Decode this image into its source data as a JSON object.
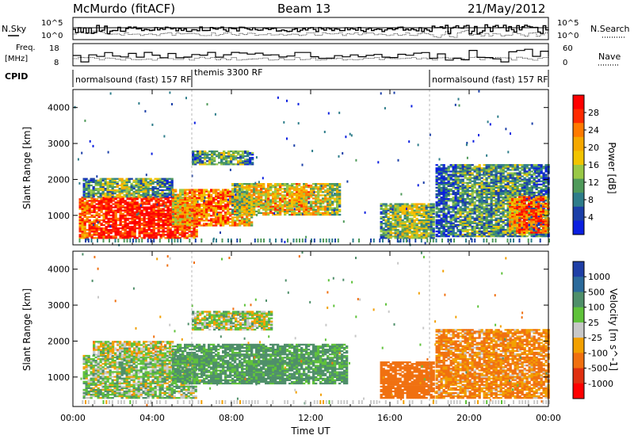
{
  "header": {
    "station": "McMurdo (fitACF)",
    "beam": "Beam 13",
    "date": "21/May/2012"
  },
  "left_labels": {
    "nsky": "N.Sky",
    "freq_line1": "Freq.",
    "freq_line2": "[MHz]",
    "cpid": "CPID"
  },
  "right_labels": {
    "nsearch": "N.Search",
    "nave": "Nave"
  },
  "noise_axis": {
    "left_ticks": [
      "10^5",
      "10^0"
    ],
    "right_ticks": [
      "10^5",
      "10^0"
    ]
  },
  "freq_axis": {
    "left_ticks": [
      "18",
      "8"
    ],
    "right_ticks": [
      "60",
      "0"
    ]
  },
  "cpid_segments": [
    {
      "label": "normalsound (fast) 157 RF",
      "start": 0,
      "end": 6.0
    },
    {
      "label": "themis 3300 RF",
      "start": 6.0,
      "end": 18.0
    },
    {
      "label": "normalsound (fast) 157 RF",
      "start": 18.0,
      "end": 24
    }
  ],
  "power_colorbar": {
    "title": "Power [dB]",
    "ticks": [
      "28",
      "24",
      "20",
      "16",
      "12",
      "8",
      "4"
    ],
    "colors": [
      "#ff0000",
      "#ff2a00",
      "#ff7a00",
      "#f5a800",
      "#f2c400",
      "#99c846",
      "#4f9a5a",
      "#2e7d8a",
      "#1b3fa8",
      "#0a1fe0"
    ]
  },
  "velocity_colorbar": {
    "title": "Velocity [m s^-1]",
    "ticks": [
      "1000",
      "500",
      "100",
      "25",
      "-25",
      "-100",
      "-500",
      "-1000"
    ],
    "colors": [
      "#1f3fa6",
      "#2b6a9b",
      "#4f8f6a",
      "#5fc23a",
      "#c8c8c8",
      "#f2a000",
      "#f07010",
      "#e03010",
      "#ff0000"
    ]
  },
  "axes": {
    "ylabel": "Slant Range [km]",
    "yticks": [
      "4000",
      "3000",
      "2000",
      "1000"
    ],
    "xlabel": "Time UT",
    "xticks": [
      "00:00",
      "04:00",
      "08:00",
      "12:00",
      "16:00",
      "20:00",
      "00:00"
    ]
  },
  "chart_data": [
    {
      "type": "heatmap",
      "title": "Power [dB]",
      "xlabel": "Time UT",
      "ylabel": "Slant Range [km]",
      "xlim": [
        0,
        24
      ],
      "ylim": [
        180,
        4500
      ],
      "zlim": [
        0,
        30
      ],
      "regions": [
        {
          "t0": 0.3,
          "t1": 6.2,
          "r0": 350,
          "r1": 1500,
          "value": 28
        },
        {
          "t0": 0.5,
          "t1": 5.0,
          "r0": 1500,
          "r1": 2000,
          "value": 12
        },
        {
          "t0": 5.0,
          "t1": 9.0,
          "r0": 700,
          "r1": 1700,
          "value": 22
        },
        {
          "t0": 8.0,
          "t1": 13.5,
          "r0": 1000,
          "r1": 1900,
          "value": 18
        },
        {
          "t0": 6.0,
          "t1": 9.0,
          "r0": 2400,
          "r1": 2800,
          "value": 12
        },
        {
          "t0": 15.5,
          "t1": 18.2,
          "r0": 350,
          "r1": 1300,
          "value": 14
        },
        {
          "t0": 18.3,
          "t1": 24.0,
          "r0": 400,
          "r1": 2400,
          "value": 10
        },
        {
          "t0": 22.0,
          "t1": 24.0,
          "r0": 500,
          "r1": 1500,
          "value": 24
        }
      ]
    },
    {
      "type": "heatmap",
      "title": "Velocity [m s^-1]",
      "xlabel": "Time UT",
      "ylabel": "Slant Range [km]",
      "xlim": [
        0,
        24
      ],
      "ylim": [
        180,
        4500
      ],
      "zlim": [
        -1000,
        1000
      ],
      "regions": [
        {
          "t0": 0.5,
          "t1": 6.2,
          "r0": 400,
          "r1": 1600,
          "value": 50
        },
        {
          "t0": 1.0,
          "t1": 5.0,
          "r0": 1600,
          "r1": 2000,
          "value": 0
        },
        {
          "t0": 5.0,
          "t1": 13.8,
          "r0": 800,
          "r1": 1900,
          "value": 150
        },
        {
          "t0": 6.0,
          "t1": 10.0,
          "r0": 2300,
          "r1": 2800,
          "value": 30
        },
        {
          "t0": 15.5,
          "t1": 18.2,
          "r0": 400,
          "r1": 1400,
          "value": -300
        },
        {
          "t0": 18.3,
          "t1": 24.0,
          "r0": 400,
          "r1": 2300,
          "value": -120
        }
      ]
    }
  ]
}
